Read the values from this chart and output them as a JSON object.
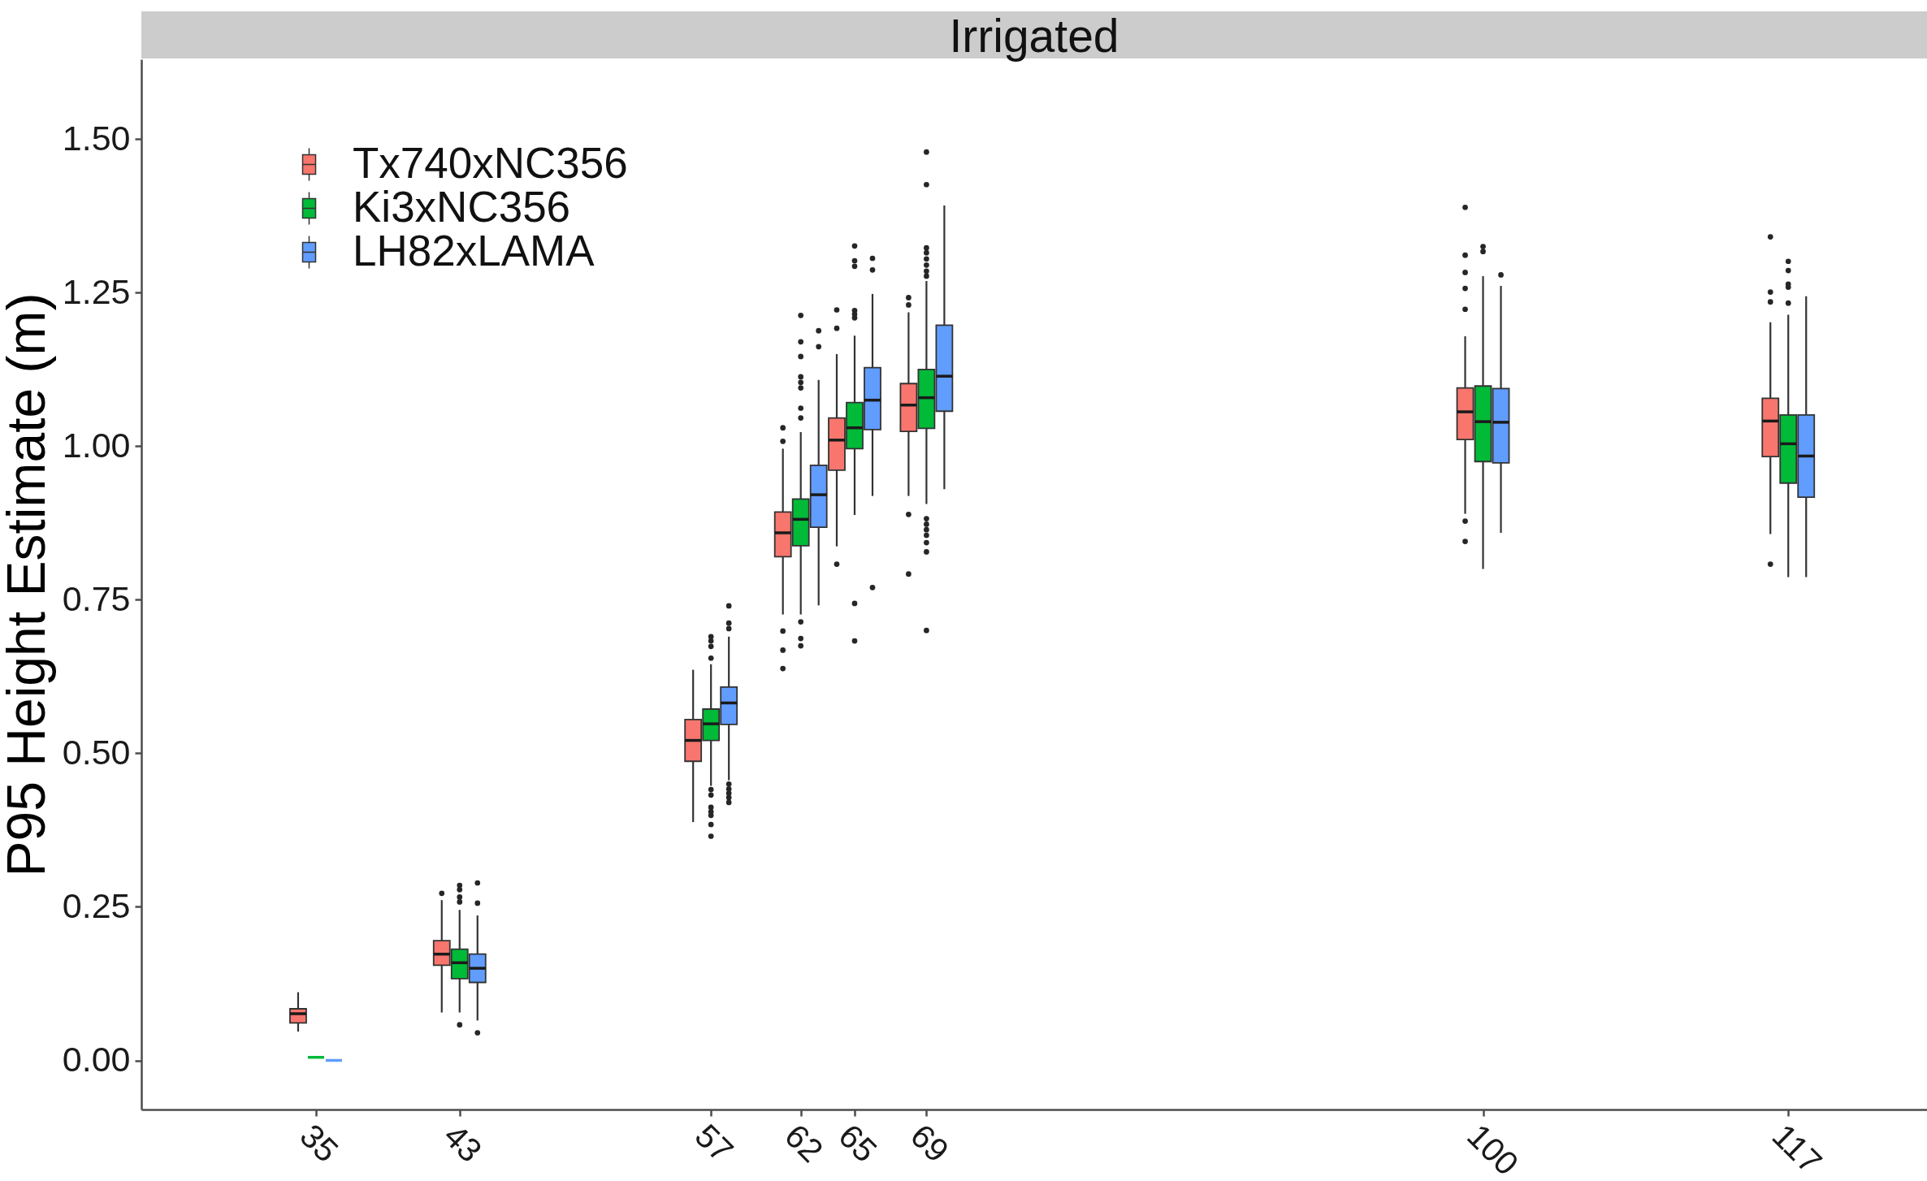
{
  "chart_data": {
    "type": "box",
    "title": "Irrigated",
    "ylabel": "P95 Height Estimate (m)",
    "x": [
      35,
      43,
      57,
      62,
      65,
      69,
      100,
      117
    ],
    "xlim": [
      25.5,
      124.5
    ],
    "xticks": [
      35,
      43,
      57,
      62,
      65,
      69,
      100,
      117
    ],
    "ylim": [
      -0.08,
      1.63
    ],
    "yticks": [
      {
        "value": 0,
        "label": "0.00"
      },
      0.25,
      {
        "value": 0.5,
        "label": "0.50"
      },
      0.75,
      {
        "value": 1,
        "label": "1.00"
      },
      1.25,
      {
        "value": 1.5,
        "label": "1.50"
      }
    ],
    "grid": false,
    "legend": "top left",
    "series": [
      {
        "name": "Tx740xNC356",
        "color": "#f8766d",
        "boxes": [
          {
            "low": 0.047,
            "q1": 0.061,
            "median": 0.076,
            "q3": 0.084,
            "high": 0.111
          },
          {
            "low": 0.078,
            "q1": 0.155,
            "median": 0.173,
            "q3": 0.195,
            "high": 0.261,
            "outliers": [
              0.272
            ]
          },
          {
            "low": 0.388,
            "q1": 0.487,
            "median": 0.521,
            "q3": 0.555,
            "high": 0.636
          },
          {
            "low": 0.726,
            "q1": 0.82,
            "median": 0.859,
            "q3": 0.893,
            "high": 0.996,
            "outliers": [
              1.03,
              1.008,
              0.699,
              0.668,
              0.638
            ]
          },
          {
            "low": 0.837,
            "q1": 0.961,
            "median": 1.01,
            "q3": 1.046,
            "high": 1.15,
            "outliers": [
              1.222,
              1.192,
              0.808
            ]
          },
          {
            "low": 0.919,
            "q1": 1.024,
            "median": 1.067,
            "q3": 1.102,
            "high": 1.218,
            "outliers": [
              1.242,
              1.23,
              0.889,
              0.792
            ]
          },
          {
            "low": 0.89,
            "q1": 1.011,
            "median": 1.056,
            "q3": 1.095,
            "high": 1.179,
            "outliers": [
              1.389,
              1.311,
              1.283,
              1.257,
              1.223,
              0.878,
              0.845
            ]
          },
          {
            "low": 0.857,
            "q1": 0.983,
            "median": 1.041,
            "q3": 1.078,
            "high": 1.202,
            "outliers": [
              1.341,
              1.251,
              1.235,
              0.808
            ]
          }
        ]
      },
      {
        "name": "Ki3xNC356",
        "color": "#00ba38",
        "boxes": [
          {
            "low": 0.005,
            "q1": 0.005,
            "median": 0.005,
            "q3": 0.005,
            "high": 0.005
          },
          {
            "low": 0.078,
            "q1": 0.133,
            "median": 0.159,
            "q3": 0.181,
            "high": 0.245,
            "outliers": [
              0.285,
              0.278,
              0.266,
              0.258,
              0.058
            ]
          },
          {
            "low": 0.447,
            "q1": 0.521,
            "median": 0.548,
            "q3": 0.572,
            "high": 0.645,
            "outliers": [
              0.69,
              0.683,
              0.674,
              0.655,
              0.441,
              0.432,
              0.412,
              0.405,
              0.399,
              0.384,
              0.365
            ]
          },
          {
            "low": 0.726,
            "q1": 0.838,
            "median": 0.881,
            "q3": 0.914,
            "high": 1.023,
            "outliers": [
              1.213,
              1.17,
              1.146,
              1.113,
              1.104,
              1.095,
              1.062,
              1.046,
              0.714,
              0.687,
              0.675
            ]
          },
          {
            "low": 0.888,
            "q1": 0.996,
            "median": 1.03,
            "q3": 1.071,
            "high": 1.18,
            "outliers": [
              1.326,
              1.302,
              1.293,
              1.221,
              1.215,
              1.209,
              0.744,
              0.683
            ]
          },
          {
            "low": 0.906,
            "q1": 1.029,
            "median": 1.079,
            "q3": 1.125,
            "high": 1.269,
            "outliers": [
              1.479,
              1.426,
              1.323,
              1.315,
              1.305,
              1.295,
              1.285,
              1.277,
              0.882,
              0.873,
              0.864,
              0.855,
              0.843,
              0.828,
              0.7
            ]
          },
          {
            "low": 0.8,
            "q1": 0.975,
            "median": 1.04,
            "q3": 1.098,
            "high": 1.277,
            "outliers": [
              1.325,
              1.317
            ]
          },
          {
            "low": 0.787,
            "q1": 0.94,
            "median": 1.004,
            "q3": 1.051,
            "high": 1.214,
            "outliers": [
              1.301,
              1.286,
              1.264,
              1.259,
              1.233
            ]
          }
        ]
      },
      {
        "name": "LH82xLAMA",
        "color": "#619cff",
        "boxes": [
          {
            "low": 0,
            "q1": 0,
            "median": 0,
            "q3": 0,
            "high": 0
          },
          {
            "low": 0.065,
            "q1": 0.127,
            "median": 0.15,
            "q3": 0.173,
            "high": 0.236,
            "outliers": [
              0.289,
              0.256,
              0.045
            ]
          },
          {
            "low": 0.456,
            "q1": 0.547,
            "median": 0.582,
            "q3": 0.608,
            "high": 0.69,
            "outliers": [
              0.74,
              0.712,
              0.703,
              0.45,
              0.442,
              0.435,
              0.428,
              0.42
            ]
          },
          {
            "low": 0.741,
            "q1": 0.868,
            "median": 0.921,
            "q3": 0.969,
            "high": 1.108,
            "outliers": [
              1.188,
              1.162
            ]
          },
          {
            "low": 0.919,
            "q1": 1.027,
            "median": 1.075,
            "q3": 1.128,
            "high": 1.248,
            "outliers": [
              1.306,
              1.287,
              0.77
            ]
          },
          {
            "low": 0.93,
            "q1": 1.057,
            "median": 1.114,
            "q3": 1.197,
            "high": 1.392
          },
          {
            "low": 0.859,
            "q1": 0.973,
            "median": 1.039,
            "q3": 1.094,
            "high": 1.261,
            "outliers": [
              1.279
            ]
          },
          {
            "low": 0.787,
            "q1": 0.917,
            "median": 0.984,
            "q3": 1.051,
            "high": 1.244
          }
        ]
      }
    ]
  }
}
